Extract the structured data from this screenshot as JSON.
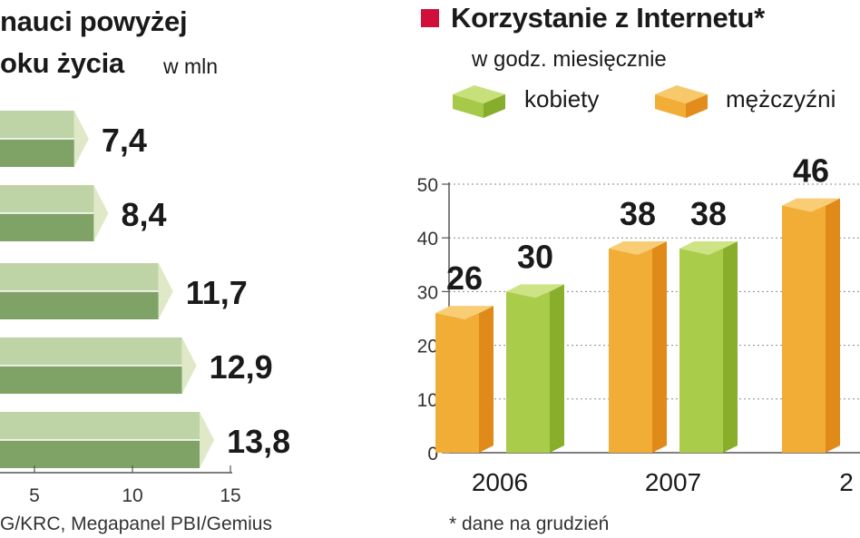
{
  "left_chart": {
    "title_line1": "nauci powyżej",
    "title_line2": "oku życia",
    "unit": "w mln",
    "source": "G/KRC, Megapanel PBI/Gemius"
  },
  "right_chart": {
    "title": "Korzystanie z Internetu*",
    "subtitle": "w godz. miesięcznie",
    "legend": [
      {
        "label": "kobiety",
        "color": "#9cc43c"
      },
      {
        "label": "mężczyźni",
        "color": "#f0a42a"
      }
    ],
    "footnote": "* dane na grudzień",
    "marker_color": "#d0103a"
  },
  "chart_data": [
    {
      "type": "bar",
      "orientation": "horizontal",
      "title": "nauci powyżej oku życia",
      "ylabel": "w mln",
      "values": [
        7.4,
        8.4,
        11.7,
        12.9,
        13.8
      ],
      "value_labels": [
        "7,4",
        "8,4",
        "11,7",
        "12,9",
        "13,8"
      ],
      "xlim": [
        0,
        15
      ],
      "x_ticks": [
        "5",
        "10",
        "15"
      ],
      "x_tick_values": [
        5,
        10,
        15
      ],
      "grid": false,
      "bar_color": "#9bb57e"
    },
    {
      "type": "bar",
      "title": "Korzystanie z Internetu*",
      "subtitle": "w godz. miesięcznie",
      "categories": [
        "2006",
        "2007",
        "2"
      ],
      "series": [
        {
          "name": "kobiety",
          "color": "#9cc43c",
          "values": [
            30,
            38,
            null
          ],
          "labels": [
            "30",
            "38",
            ""
          ]
        },
        {
          "name": "mężczyźni",
          "color": "#f0a42a",
          "values": [
            26,
            38,
            46
          ],
          "labels": [
            "26",
            "38",
            "46"
          ]
        }
      ],
      "ylim": [
        0,
        50
      ],
      "y_ticks": [
        "0",
        "10",
        "20",
        "30",
        "40",
        "50"
      ],
      "y_tick_values": [
        0,
        10,
        20,
        30,
        40,
        50
      ],
      "grid": true,
      "legend_position": "top"
    }
  ]
}
